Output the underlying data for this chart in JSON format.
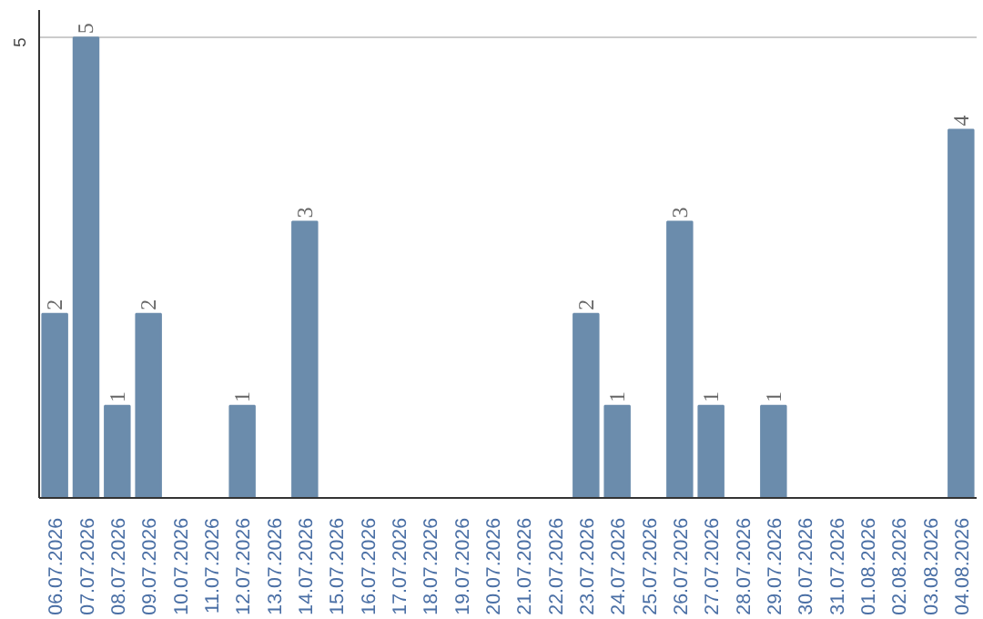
{
  "chart_data": {
    "type": "bar",
    "categories": [
      "06.07.2026",
      "07.07.2026",
      "08.07.2026",
      "09.07.2026",
      "10.07.2026",
      "11.07.2026",
      "12.07.2026",
      "13.07.2026",
      "14.07.2026",
      "15.07.2026",
      "16.07.2026",
      "17.07.2026",
      "18.07.2026",
      "19.07.2026",
      "20.07.2026",
      "21.07.2026",
      "22.07.2026",
      "23.07.2026",
      "24.07.2026",
      "25.07.2026",
      "26.07.2026",
      "27.07.2026",
      "28.07.2026",
      "29.07.2026",
      "30.07.2026",
      "31.07.2026",
      "01.08.2026",
      "02.08.2026",
      "03.08.2026",
      "04.08.2026"
    ],
    "values": [
      2,
      5,
      1,
      2,
      0,
      0,
      1,
      0,
      3,
      0,
      0,
      0,
      0,
      0,
      0,
      0,
      0,
      2,
      1,
      0,
      3,
      1,
      0,
      1,
      0,
      0,
      0,
      0,
      0,
      4
    ],
    "value_labels": [
      "2",
      "5",
      "1",
      "2",
      null,
      null,
      "1",
      null,
      "3",
      null,
      null,
      null,
      null,
      null,
      null,
      null,
      null,
      "2",
      "1",
      null,
      "3",
      "1",
      null,
      "1",
      null,
      null,
      null,
      null,
      null,
      "4"
    ],
    "color": "#6b8cac",
    "ylim": [
      0,
      5.3
    ],
    "yticks": [
      5
    ],
    "grid": "y"
  }
}
